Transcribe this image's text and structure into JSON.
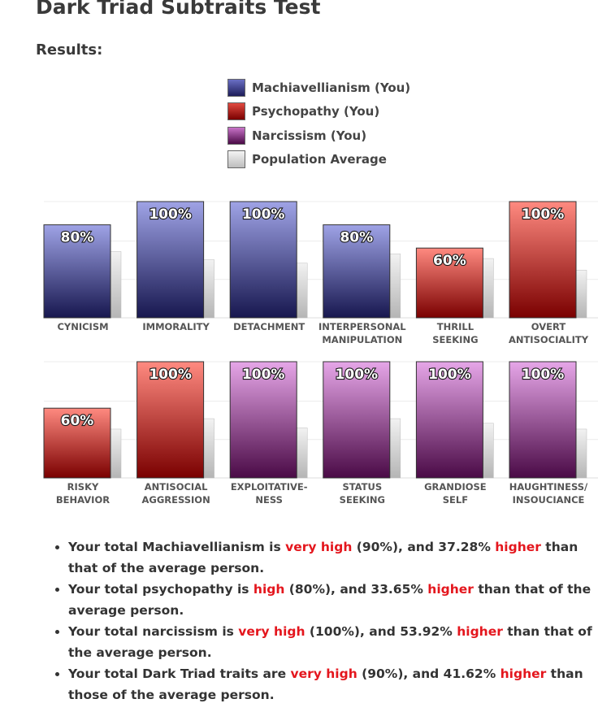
{
  "page": {
    "title": "Dark Triad Subtraits Test",
    "results_heading": "Results:"
  },
  "legend": [
    {
      "label": "Machiavellianism (You)",
      "color": "#3b3b8a"
    },
    {
      "label": "Psychopathy (You)",
      "color": "#a51414"
    },
    {
      "label": "Narcissism (You)",
      "color": "#8a2a86"
    },
    {
      "label": "Population Average",
      "color": "#cccccc"
    }
  ],
  "colors": {
    "machiavellianism_top": "#9fa3e6",
    "machiavellianism_bottom": "#17174f",
    "psychopathy_top": "#ff8a80",
    "psychopathy_bottom": "#7a0000",
    "narcissism_top": "#e6a6e8",
    "narcissism_bottom": "#4a0a46",
    "average_top": "#f2f2f2",
    "average_bottom": "#b5b5b5",
    "label_text": "#ffffff",
    "category_text": "#555555",
    "highlight": "#e4161d"
  },
  "chart_data": {
    "type": "bar",
    "ylim": [
      0,
      100
    ],
    "grid": true,
    "legend_placement": "top",
    "series_names": [
      "Machiavellianism (You)",
      "Psychopathy (You)",
      "Narcissism (You)",
      "Population Average"
    ],
    "rows": [
      [
        {
          "label": [
            "CYNICISM"
          ],
          "you": 80,
          "you_label": "80%",
          "average": 57,
          "trait": "machiavellianism"
        },
        {
          "label": [
            "IMMORALITY"
          ],
          "you": 100,
          "you_label": "100%",
          "average": 50,
          "trait": "machiavellianism"
        },
        {
          "label": [
            "DETACHMENT"
          ],
          "you": 100,
          "you_label": "100%",
          "average": 47,
          "trait": "machiavellianism"
        },
        {
          "label": [
            "INTERPERSONAL",
            "MANIPULATION"
          ],
          "you": 80,
          "you_label": "80%",
          "average": 55,
          "trait": "machiavellianism"
        },
        {
          "label": [
            "THRILL",
            "SEEKING"
          ],
          "you": 60,
          "you_label": "60%",
          "average": 51,
          "trait": "psychopathy"
        },
        {
          "label": [
            "OVERT",
            "ANTISOCIALITY"
          ],
          "you": 100,
          "you_label": "100%",
          "average": 41,
          "trait": "psychopathy"
        }
      ],
      [
        {
          "label": [
            "RISKY",
            "BEHAVIOR"
          ],
          "you": 60,
          "you_label": "60%",
          "average": 42,
          "trait": "psychopathy"
        },
        {
          "label": [
            "ANTISOCIAL",
            "AGGRESSION"
          ],
          "you": 100,
          "you_label": "100%",
          "average": 51,
          "trait": "psychopathy"
        },
        {
          "label": [
            "EXPLOITATIVE-",
            "NESS"
          ],
          "you": 100,
          "you_label": "100%",
          "average": 43,
          "trait": "narcissism"
        },
        {
          "label": [
            "STATUS",
            "SEEKING"
          ],
          "you": 100,
          "you_label": "100%",
          "average": 51,
          "trait": "narcissism"
        },
        {
          "label": [
            "GRANDIOSE",
            "SELF"
          ],
          "you": 100,
          "you_label": "100%",
          "average": 47,
          "trait": "narcissism"
        },
        {
          "label": [
            "HAUGHTINESS/",
            "INSOUCIANCE"
          ],
          "you": 100,
          "you_label": "100%",
          "average": 42,
          "trait": "narcissism"
        }
      ]
    ]
  },
  "summary": [
    {
      "pre": "Your total Machiavellianism is ",
      "level": "very high",
      "mid": " (90%), and 37.28% ",
      "dir": "higher",
      "post": " than that of the average person."
    },
    {
      "pre": "Your total psychopathy is ",
      "level": "high",
      "mid": " (80%), and 33.65% ",
      "dir": "higher",
      "post": " than that of the average person."
    },
    {
      "pre": "Your total narcissism is ",
      "level": "very high",
      "mid": " (100%), and 53.92% ",
      "dir": "higher",
      "post": " than that of the average person."
    },
    {
      "pre": "Your total Dark Triad traits are ",
      "level": "very high",
      "mid": " (90%), and 41.62% ",
      "dir": "higher",
      "post": " than those of the average person."
    }
  ]
}
